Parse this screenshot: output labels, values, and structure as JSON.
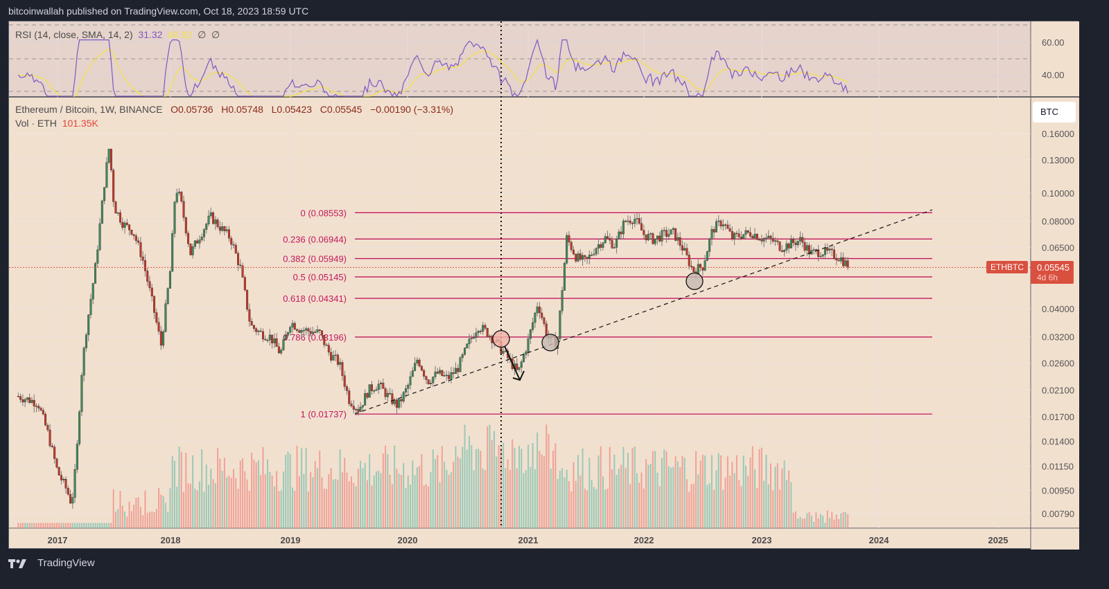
{
  "header": {
    "published_text": "bitcoinwallah published on TradingView.com, Oct 18, 2023 18:59 UTC"
  },
  "rsi_legend": {
    "label": "RSI (14, close, SMA, 14, 2)",
    "rsi_value": "31.32",
    "sma_value": "40.92",
    "extra1": "∅",
    "extra2": "∅"
  },
  "symbol_legend": {
    "name": "Ethereum / Bitcoin, 1W, BINANCE",
    "open": "O0.05736",
    "high": "H0.05748",
    "low": "L0.05423",
    "close": "C0.05545",
    "change": "−0.00190 (−3.31%)"
  },
  "volume_legend": {
    "label": "Vol · ETH",
    "value": "101.35K"
  },
  "price_axis": {
    "currency_button": "BTC",
    "rsi_ticks": [
      "60.00",
      "40.00"
    ],
    "ticks": [
      "0.16000",
      "0.13000",
      "0.10000",
      "0.08000",
      "0.06500",
      "0.04000",
      "0.03200",
      "0.02600",
      "0.02100",
      "0.01700",
      "0.01400",
      "0.01150",
      "0.00950",
      "0.00790"
    ],
    "last_price": "0.05545",
    "countdown": "4d 6h",
    "symbol_tag": "ETHBTC"
  },
  "time_axis": {
    "ticks": [
      "2017",
      "2018",
      "2019",
      "2020",
      "2021",
      "2022",
      "2023",
      "2024",
      "2025"
    ]
  },
  "footer": {
    "brand": "TradingView"
  },
  "colors": {
    "up": "#3d8a5e",
    "down": "#c0392b",
    "fib": "#c2185b",
    "rsi": "#7e57c2",
    "rsi_sma": "#f5e04a",
    "last_price": "#d9503f"
  },
  "chart_data": {
    "type": "candlestick",
    "title": "Ethereum / Bitcoin, 1W, BINANCE",
    "scale": "log",
    "ylim": [
      0.0075,
      0.17
    ],
    "x_range": [
      "2016-09",
      "2025-06"
    ],
    "fibonacci": [
      {
        "level": "0",
        "price": 0.08553,
        "label": "0 (0.08553)"
      },
      {
        "level": "0.236",
        "price": 0.06944,
        "label": "0.236 (0.06944)"
      },
      {
        "level": "0.382",
        "price": 0.05949,
        "label": "0.382 (0.05949)"
      },
      {
        "level": "0.5",
        "price": 0.05145,
        "label": "0.5 (0.05145)"
      },
      {
        "level": "0.618",
        "price": 0.04341,
        "label": "0.618 (0.04341)"
      },
      {
        "level": "0.786",
        "price": 0.03196,
        "label": "0.786 (0.03196)"
      },
      {
        "level": "1",
        "price": 0.01737,
        "label": "1 (0.01737)"
      }
    ],
    "trendline": {
      "from": [
        "2019-07",
        0.0174
      ],
      "to": [
        "2024-07",
        0.088
      ],
      "style": "dashed"
    },
    "price_path": [
      [
        "2016-09",
        0.02
      ],
      [
        "2016-11",
        0.019
      ],
      [
        "2016-12",
        0.015
      ],
      [
        "2017-01",
        0.011
      ],
      [
        "2017-02",
        0.0095
      ],
      [
        "2017-02b",
        0.0085
      ],
      [
        "2017-03",
        0.012
      ],
      [
        "2017-03b",
        0.023
      ],
      [
        "2017-04",
        0.033
      ],
      [
        "2017-05",
        0.055
      ],
      [
        "2017-06",
        0.11
      ],
      [
        "2017-06b",
        0.145
      ],
      [
        "2017-07",
        0.09
      ],
      [
        "2017-08",
        0.078
      ],
      [
        "2017-09",
        0.074
      ],
      [
        "2017-10",
        0.06
      ],
      [
        "2017-11",
        0.043
      ],
      [
        "2017-12",
        0.03
      ],
      [
        "2018-01",
        0.055
      ],
      [
        "2018-01b",
        0.105
      ],
      [
        "2018-02",
        0.095
      ],
      [
        "2018-03",
        0.062
      ],
      [
        "2018-04",
        0.072
      ],
      [
        "2018-05",
        0.083
      ],
      [
        "2018-06",
        0.076
      ],
      [
        "2018-07",
        0.07
      ],
      [
        "2018-08",
        0.055
      ],
      [
        "2018-09",
        0.035
      ],
      [
        "2018-10",
        0.033
      ],
      [
        "2018-11",
        0.032
      ],
      [
        "2018-12",
        0.028
      ],
      [
        "2019-01",
        0.036
      ],
      [
        "2019-02",
        0.034
      ],
      [
        "2019-03",
        0.0335
      ],
      [
        "2019-04",
        0.033
      ],
      [
        "2019-05",
        0.028
      ],
      [
        "2019-06",
        0.026
      ],
      [
        "2019-07",
        0.0195
      ],
      [
        "2019-08",
        0.018
      ],
      [
        "2019-09",
        0.021
      ],
      [
        "2019-10",
        0.022
      ],
      [
        "2019-11",
        0.02
      ],
      [
        "2019-12",
        0.0185
      ],
      [
        "2020-01",
        0.0215
      ],
      [
        "2020-02",
        0.027
      ],
      [
        "2020-03",
        0.0225
      ],
      [
        "2020-04",
        0.024
      ],
      [
        "2020-05",
        0.023
      ],
      [
        "2020-06",
        0.025
      ],
      [
        "2020-07",
        0.03
      ],
      [
        "2020-08",
        0.035
      ],
      [
        "2020-09",
        0.033
      ],
      [
        "2020-10",
        0.03
      ],
      [
        "2020-11",
        0.027
      ],
      [
        "2020-12",
        0.024
      ],
      [
        "2021-01",
        0.031
      ],
      [
        "2021-02",
        0.042
      ],
      [
        "2021-03",
        0.032
      ],
      [
        "2021-04",
        0.03
      ],
      [
        "2021-05",
        0.07
      ],
      [
        "2021-06",
        0.06
      ],
      [
        "2021-07",
        0.058
      ],
      [
        "2021-08",
        0.065
      ],
      [
        "2021-09",
        0.07
      ],
      [
        "2021-10",
        0.066
      ],
      [
        "2021-11",
        0.08
      ],
      [
        "2021-12",
        0.082
      ],
      [
        "2022-01",
        0.072
      ],
      [
        "2022-02",
        0.069
      ],
      [
        "2022-03",
        0.072
      ],
      [
        "2022-04",
        0.073
      ],
      [
        "2022-05",
        0.064
      ],
      [
        "2022-06",
        0.054
      ],
      [
        "2022-07",
        0.056
      ],
      [
        "2022-08",
        0.075
      ],
      [
        "2022-09",
        0.08
      ],
      [
        "2022-10",
        0.07
      ],
      [
        "2022-11",
        0.072
      ],
      [
        "2022-12",
        0.073
      ],
      [
        "2023-01",
        0.07
      ],
      [
        "2023-02",
        0.069
      ],
      [
        "2023-03",
        0.065
      ],
      [
        "2023-04",
        0.067
      ],
      [
        "2023-05",
        0.069
      ],
      [
        "2023-06",
        0.062
      ],
      [
        "2023-07",
        0.063
      ],
      [
        "2023-08",
        0.062
      ],
      [
        "2023-09",
        0.06
      ],
      [
        "2023-10",
        0.05545
      ]
    ],
    "annotations": [
      "vertical dotted line at 2020-10",
      "circles at 0.786 retracement touches (2020-10, 2021-03)",
      "circle at 0.5 retracement (2022-06)",
      "down arrow after 2020-10"
    ]
  }
}
